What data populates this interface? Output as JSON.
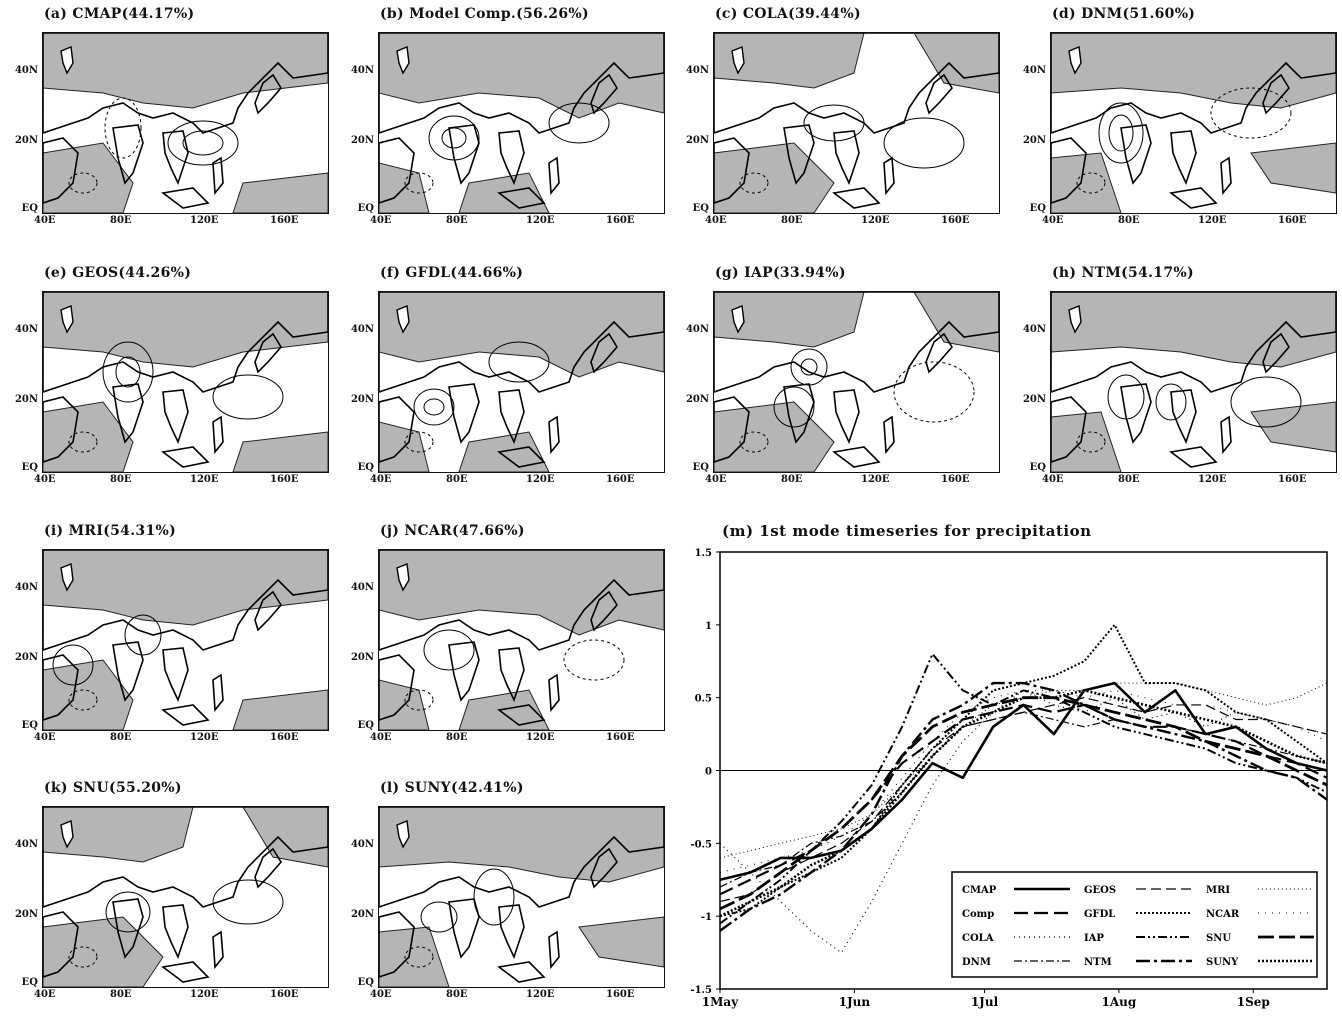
{
  "panels": [
    {
      "id": "a",
      "title": "(a) CMAP(44.17%)"
    },
    {
      "id": "b",
      "title": "(b) Model Comp.(56.26%)"
    },
    {
      "id": "c",
      "title": "(c) COLA(39.44%)"
    },
    {
      "id": "d",
      "title": "(d) DNM(51.60%)"
    },
    {
      "id": "e",
      "title": "(e) GEOS(44.26%)"
    },
    {
      "id": "f",
      "title": "(f) GFDL(44.66%)"
    },
    {
      "id": "g",
      "title": "(g) IAP(33.94%)"
    },
    {
      "id": "h",
      "title": "(h) NTM(54.17%)"
    },
    {
      "id": "i",
      "title": "(i) MRI(54.31%)"
    },
    {
      "id": "j",
      "title": "(j) NCAR(47.66%)"
    },
    {
      "id": "k",
      "title": "(k) SNU(55.20%)"
    },
    {
      "id": "l",
      "title": "(l) SUNY(42.41%)"
    }
  ],
  "map_axes": {
    "lat_labels": [
      "40N",
      "20N",
      "EQ"
    ],
    "lon_labels": [
      "40E",
      "80E",
      "120E",
      "160E"
    ]
  },
  "chart_data": {
    "type": "line",
    "title": "(m) 1st mode timeseries for precipitation",
    "xlabel": "",
    "ylabel": "",
    "x_ticks": [
      "1May",
      "1Jun",
      "1Jul",
      "1Aug",
      "1Sep"
    ],
    "y_ticks": [
      "1.5",
      "1",
      "0.5",
      "0",
      "-0.5",
      "-1",
      "-1.5"
    ],
    "ylim": [
      -1.5,
      1.5
    ],
    "x": [
      1,
      8,
      15,
      22,
      29,
      36,
      43,
      50,
      57,
      64,
      71,
      78,
      85,
      92,
      99,
      106,
      113,
      120,
      127,
      134,
      141
    ],
    "grid": false,
    "zero_line": true,
    "legend_placement": "bottom-right",
    "series": [
      {
        "name": "CMAP",
        "style": "solid-thick",
        "values": [
          -0.75,
          -0.7,
          -0.6,
          -0.6,
          -0.55,
          -0.4,
          -0.2,
          0.05,
          -0.05,
          0.3,
          0.45,
          0.25,
          0.55,
          0.6,
          0.4,
          0.55,
          0.25,
          0.3,
          0.15,
          0.05,
          0.0
        ]
      },
      {
        "name": "Comp",
        "style": "long-dash",
        "values": [
          -0.85,
          -0.75,
          -0.65,
          -0.55,
          -0.4,
          -0.2,
          0.05,
          0.2,
          0.35,
          0.4,
          0.45,
          0.4,
          0.45,
          0.35,
          0.3,
          0.3,
          0.25,
          0.2,
          0.1,
          0.05,
          -0.05
        ]
      },
      {
        "name": "COLA",
        "style": "sparse-dot",
        "values": [
          -0.5,
          -0.7,
          -0.9,
          -1.1,
          -1.25,
          -0.9,
          -0.5,
          -0.1,
          0.2,
          0.4,
          0.55,
          0.45,
          0.4,
          0.5,
          0.35,
          0.4,
          0.3,
          0.4,
          0.35,
          0.3,
          0.25
        ]
      },
      {
        "name": "DNM",
        "style": "dash-dot",
        "values": [
          -0.8,
          -0.7,
          -0.65,
          -0.5,
          -0.45,
          -0.35,
          -0.15,
          0.1,
          0.3,
          0.35,
          0.4,
          0.35,
          0.3,
          0.35,
          0.3,
          0.3,
          0.25,
          0.2,
          0.15,
          0.1,
          0.05
        ]
      },
      {
        "name": "GEOS",
        "style": "dash",
        "values": [
          -0.9,
          -0.85,
          -0.7,
          -0.6,
          -0.5,
          -0.35,
          -0.1,
          0.15,
          0.3,
          0.35,
          0.4,
          0.45,
          0.5,
          0.45,
          0.4,
          0.45,
          0.45,
          0.35,
          0.35,
          0.3,
          0.25
        ]
      },
      {
        "name": "GFDL",
        "style": "dense-dot",
        "values": [
          -1.0,
          -0.95,
          -0.8,
          -0.7,
          -0.6,
          -0.4,
          -0.1,
          0.15,
          0.35,
          0.55,
          0.6,
          0.65,
          0.75,
          1.0,
          0.6,
          0.6,
          0.55,
          0.4,
          0.35,
          0.2,
          0.05
        ]
      },
      {
        "name": "IAP",
        "style": "dash-dot-dot",
        "values": [
          -1.05,
          -0.9,
          -0.75,
          -0.55,
          -0.35,
          -0.1,
          0.3,
          0.8,
          0.55,
          0.45,
          0.55,
          0.5,
          0.4,
          0.3,
          0.25,
          0.2,
          0.15,
          0.05,
          0.0,
          -0.05,
          -0.15
        ]
      },
      {
        "name": "NTM",
        "style": "dash-dot-long",
        "values": [
          -1.1,
          -0.95,
          -0.85,
          -0.7,
          -0.55,
          -0.3,
          0.1,
          0.35,
          0.45,
          0.6,
          0.6,
          0.55,
          0.45,
          0.35,
          0.3,
          0.25,
          0.2,
          0.1,
          0.0,
          -0.05,
          -0.2
        ]
      },
      {
        "name": "MRI",
        "style": "fine-dot",
        "values": [
          -0.6,
          -0.55,
          -0.5,
          -0.45,
          -0.4,
          -0.3,
          -0.1,
          0.1,
          0.3,
          0.45,
          0.5,
          0.55,
          0.55,
          0.6,
          0.6,
          0.6,
          0.55,
          0.5,
          0.45,
          0.5,
          0.6
        ]
      },
      {
        "name": "NCAR",
        "style": "fine-dot-sparse",
        "values": [
          -0.7,
          -0.65,
          -0.6,
          -0.55,
          -0.45,
          -0.3,
          -0.05,
          0.2,
          0.4,
          0.5,
          0.55,
          0.55,
          0.5,
          0.55,
          0.5,
          0.45,
          0.45,
          0.4,
          0.35,
          0.3,
          0.2
        ]
      },
      {
        "name": "SNU",
        "style": "long-dash-thick",
        "values": [
          -0.95,
          -0.85,
          -0.7,
          -0.55,
          -0.4,
          -0.2,
          0.1,
          0.3,
          0.4,
          0.45,
          0.5,
          0.5,
          0.45,
          0.4,
          0.35,
          0.3,
          0.2,
          0.15,
          0.1,
          0.0,
          -0.1
        ]
      },
      {
        "name": "SUNY",
        "style": "dense-dot-thick",
        "values": [
          -1.0,
          -0.9,
          -0.8,
          -0.65,
          -0.55,
          -0.4,
          -0.15,
          0.1,
          0.3,
          0.4,
          0.5,
          0.5,
          0.55,
          0.5,
          0.45,
          0.4,
          0.35,
          0.3,
          0.2,
          0.1,
          0.05
        ]
      }
    ],
    "legend": [
      [
        "CMAP",
        "GEOS",
        "MRI"
      ],
      [
        "Comp",
        "GFDL",
        "NCAR"
      ],
      [
        "COLA",
        "IAP",
        "SNU"
      ],
      [
        "DNM",
        "NTM",
        "SUNY"
      ]
    ]
  }
}
